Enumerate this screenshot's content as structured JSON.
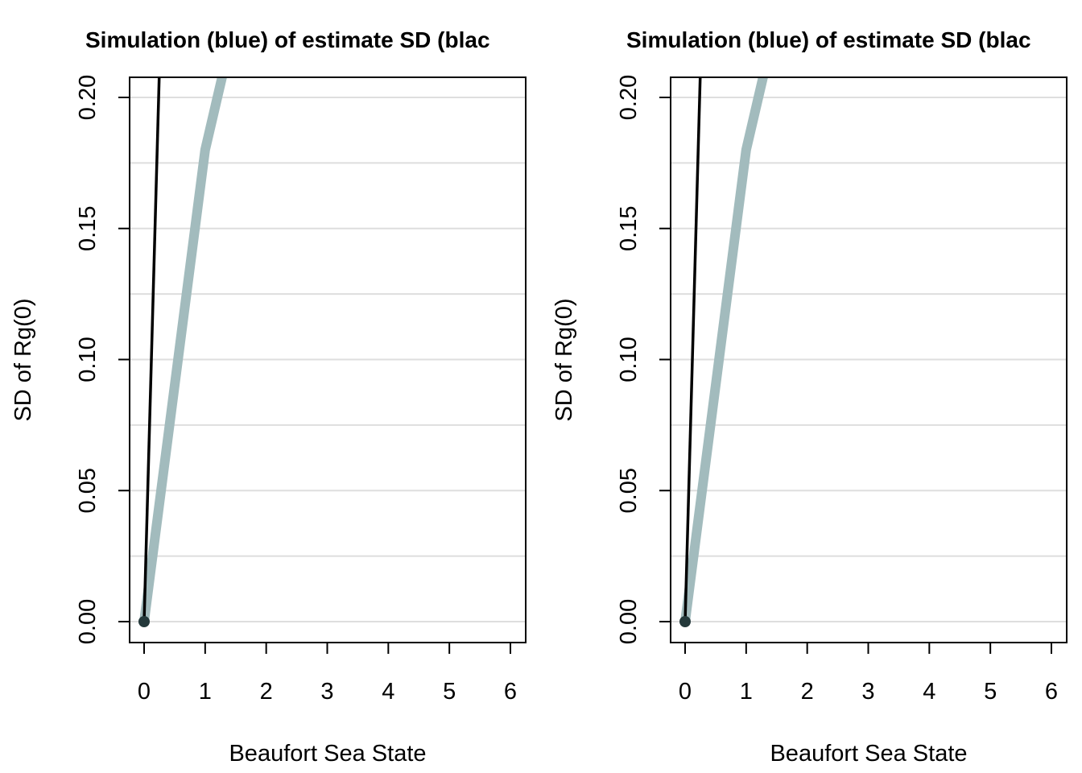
{
  "chart_data": [
    {
      "type": "line",
      "title": "Simulation (blue) of estimate SD (blac",
      "xlabel": "Beaufort Sea State",
      "ylabel": "SD of Rg(0)",
      "xlim": [
        0,
        6
      ],
      "ylim": [
        0,
        0.2
      ],
      "x_ticks": [
        "0",
        "1",
        "2",
        "3",
        "4",
        "5",
        "6"
      ],
      "y_ticks": [
        "0.00",
        "0.05",
        "0.10",
        "0.15",
        "0.20"
      ],
      "grid": true,
      "gridlines_y": [
        0,
        0.025,
        0.05,
        0.075,
        0.1,
        0.125,
        0.15,
        0.175,
        0.2
      ],
      "series": [
        {
          "values_x": [
            0,
            0.25
          ],
          "values_y": [
            0,
            0.21
          ],
          "color": "#000000",
          "style": "thin-line"
        },
        {
          "values_x": [
            0,
            1,
            1.3
          ],
          "values_y": [
            0,
            0.18,
            0.21
          ],
          "color": "#a2bbbd",
          "style": "thick-line"
        }
      ],
      "points": [
        {
          "x": 0,
          "y": 0,
          "color": "#24393b"
        }
      ]
    },
    {
      "type": "line",
      "title": "Simulation (blue) of estimate SD (blac",
      "xlabel": "Beaufort Sea State",
      "ylabel": "SD of Rg(0)",
      "xlim": [
        0,
        6
      ],
      "ylim": [
        0,
        0.2
      ],
      "x_ticks": [
        "0",
        "1",
        "2",
        "3",
        "4",
        "5",
        "6"
      ],
      "y_ticks": [
        "0.00",
        "0.05",
        "0.10",
        "0.15",
        "0.20"
      ],
      "grid": true,
      "gridlines_y": [
        0,
        0.025,
        0.05,
        0.075,
        0.1,
        0.125,
        0.15,
        0.175,
        0.2
      ],
      "series": [
        {
          "values_x": [
            0,
            0.25
          ],
          "values_y": [
            0,
            0.21
          ],
          "color": "#000000",
          "style": "thin-line"
        },
        {
          "values_x": [
            0,
            1,
            1.3
          ],
          "values_y": [
            0,
            0.18,
            0.21
          ],
          "color": "#a2bbbd",
          "style": "thick-line"
        }
      ],
      "points": [
        {
          "x": 0,
          "y": 0,
          "color": "#24393b"
        }
      ]
    }
  ]
}
